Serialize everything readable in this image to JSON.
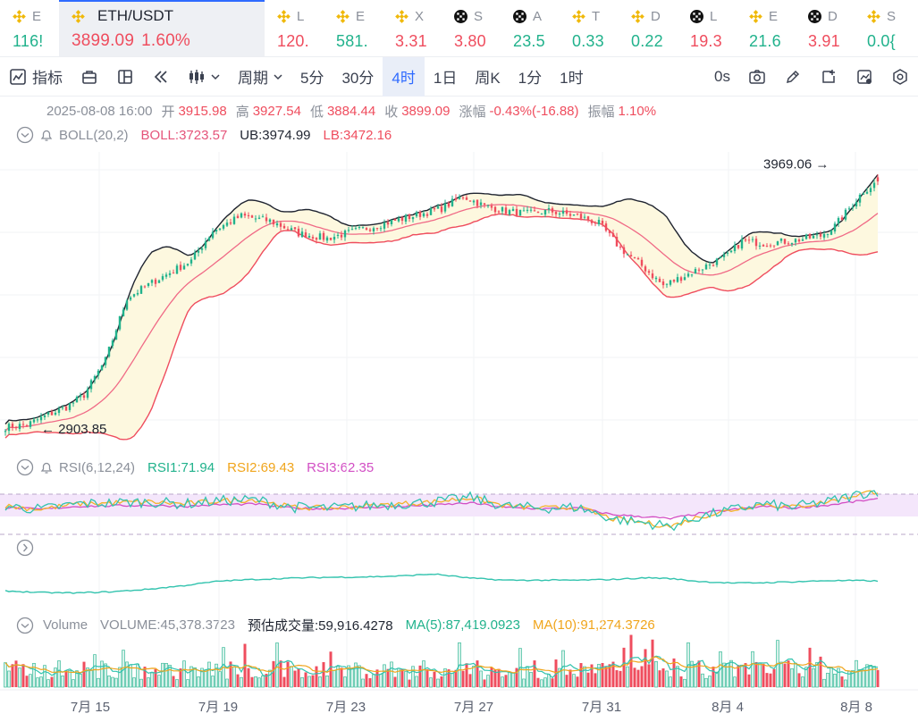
{
  "tickers": [
    {
      "name": "E",
      "value": "116!",
      "dir": "up",
      "icon": "binance-icon"
    },
    {
      "name": "ETH/USDT",
      "value": "3899.09",
      "change": "1.60%",
      "dir": "down",
      "icon": "binance-icon",
      "active": true
    },
    {
      "name": "L",
      "value": "120.",
      "dir": "down",
      "icon": "binance-icon"
    },
    {
      "name": "E",
      "value": "581.",
      "dir": "up",
      "icon": "binance-icon"
    },
    {
      "name": "X",
      "value": "3.31",
      "dir": "down",
      "icon": "binance-icon"
    },
    {
      "name": "S",
      "value": "3.80",
      "dir": "down",
      "icon": "okx-icon"
    },
    {
      "name": "A",
      "value": "23.5",
      "dir": "up",
      "icon": "okx-icon"
    },
    {
      "name": "T",
      "value": "0.33",
      "dir": "up",
      "icon": "binance-icon"
    },
    {
      "name": "D",
      "value": "0.22",
      "dir": "up",
      "icon": "binance-icon"
    },
    {
      "name": "L",
      "value": "19.3",
      "dir": "down",
      "icon": "okx-icon"
    },
    {
      "name": "E",
      "value": "21.6",
      "dir": "up",
      "icon": "binance-icon"
    },
    {
      "name": "D",
      "value": "3.91",
      "dir": "down",
      "icon": "okx-icon"
    },
    {
      "name": "S",
      "value": "0.0{",
      "dir": "up",
      "icon": "binance-icon"
    }
  ],
  "toolbar": {
    "indicator": "指标",
    "period": "周期",
    "intervals": [
      "5分",
      "30分",
      "4时",
      "1日",
      "周K",
      "1分",
      "1时"
    ],
    "active_interval": "4时",
    "countdown": "0s"
  },
  "ohlc_row": {
    "time": "2025-08-08 16:00",
    "open_label": "开",
    "open": "3915.98",
    "high_label": "高",
    "high": "3927.54",
    "low_label": "低",
    "low": "3884.44",
    "close_label": "收",
    "close": "3899.09",
    "change_label": "涨幅",
    "change": "-0.43%(-16.88)",
    "amp_label": "振幅",
    "amp": "1.10%"
  },
  "boll_row": {
    "name": "BOLL(20,2)",
    "boll": "BOLL:3723.57",
    "ub": "UB:3974.99",
    "lb": "LB:3472.16"
  },
  "rsi_row": {
    "name": "RSI(6,12,24)",
    "rsi1": "RSI1:71.94",
    "rsi2": "RSI2:69.43",
    "rsi3": "RSI3:62.35"
  },
  "volume_row": {
    "name": "Volume",
    "volume": "VOLUME:45,378.3723",
    "estimate": "预估成交量:59,916.4278",
    "ma5": "MA(5):87,419.0923",
    "ma10": "MA(10):91,274.3726"
  },
  "price_annotations": {
    "high": "3969.06",
    "low": "2903.85"
  },
  "colors": {
    "up": "#21b28c",
    "down": "#ef4d5e",
    "boll_mid": "#f06a86",
    "band": "#1f2430",
    "band_fill": "#fdf8df",
    "rsi1": "#32c3ae",
    "rsi2": "#f3b22a",
    "rsi3": "#d24ec4",
    "ma5": "#32c3ae",
    "ma10": "#f0a51c",
    "accent": "#2f6bff"
  },
  "chart_data": {
    "type": "candlestick",
    "x_ticks": [
      "7月 15",
      "7月 19",
      "7月 23",
      "7月 27",
      "7月 31",
      "8月 4",
      "8月 8"
    ],
    "close_anchors": [
      [
        0,
        2910
      ],
      [
        6,
        2920
      ],
      [
        12,
        2960
      ],
      [
        17,
        2990
      ],
      [
        22,
        3040
      ],
      [
        28,
        3180
      ],
      [
        34,
        3430
      ],
      [
        42,
        3500
      ],
      [
        52,
        3580
      ],
      [
        58,
        3700
      ],
      [
        66,
        3760
      ],
      [
        74,
        3740
      ],
      [
        82,
        3690
      ],
      [
        90,
        3670
      ],
      [
        98,
        3700
      ],
      [
        106,
        3730
      ],
      [
        114,
        3760
      ],
      [
        122,
        3790
      ],
      [
        128,
        3840
      ],
      [
        134,
        3800
      ],
      [
        140,
        3780
      ],
      [
        146,
        3770
      ],
      [
        152,
        3780
      ],
      [
        160,
        3760
      ],
      [
        166,
        3730
      ],
      [
        172,
        3630
      ],
      [
        178,
        3560
      ],
      [
        184,
        3480
      ],
      [
        190,
        3520
      ],
      [
        196,
        3560
      ],
      [
        202,
        3600
      ],
      [
        206,
        3660
      ],
      [
        212,
        3650
      ],
      [
        220,
        3660
      ],
      [
        228,
        3680
      ],
      [
        232,
        3720
      ],
      [
        236,
        3790
      ],
      [
        240,
        3860
      ],
      [
        244,
        3899
      ]
    ],
    "rsi_anchors": [
      [
        0,
        58
      ],
      [
        10,
        55
      ],
      [
        20,
        60
      ],
      [
        30,
        61
      ],
      [
        40,
        62
      ],
      [
        50,
        60
      ],
      [
        60,
        63
      ],
      [
        70,
        64
      ],
      [
        80,
        57
      ],
      [
        90,
        56
      ],
      [
        100,
        58
      ],
      [
        110,
        60
      ],
      [
        120,
        62
      ],
      [
        130,
        66
      ],
      [
        140,
        58
      ],
      [
        150,
        56
      ],
      [
        160,
        57
      ],
      [
        170,
        46
      ],
      [
        180,
        42
      ],
      [
        186,
        39
      ],
      [
        194,
        48
      ],
      [
        204,
        55
      ],
      [
        212,
        60
      ],
      [
        220,
        57
      ],
      [
        230,
        62
      ],
      [
        240,
        70
      ],
      [
        244,
        72
      ]
    ],
    "lower_line_anchors": [
      [
        0,
        32
      ],
      [
        10,
        28
      ],
      [
        20,
        27
      ],
      [
        30,
        30
      ],
      [
        40,
        36
      ],
      [
        50,
        45
      ],
      [
        60,
        56
      ],
      [
        70,
        60
      ],
      [
        80,
        63
      ],
      [
        90,
        65
      ],
      [
        100,
        66
      ],
      [
        110,
        68
      ],
      [
        120,
        73
      ],
      [
        130,
        63
      ],
      [
        140,
        58
      ],
      [
        150,
        58
      ],
      [
        160,
        58
      ],
      [
        170,
        60
      ],
      [
        180,
        64
      ],
      [
        186,
        62
      ],
      [
        194,
        55
      ],
      [
        204,
        51
      ],
      [
        212,
        52
      ],
      [
        220,
        54
      ],
      [
        230,
        57
      ],
      [
        240,
        57
      ],
      [
        244,
        56
      ]
    ],
    "volume_peak": 100,
    "volume_ma5": "87,419.0923",
    "volume_ma10": "91,274.3726"
  }
}
